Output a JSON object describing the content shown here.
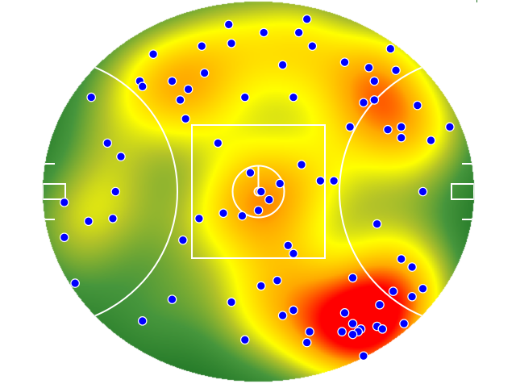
{
  "chart_data": {
    "type": "heatmap",
    "title": "",
    "xlabel": "",
    "ylabel": "",
    "xlim": [
      -80,
      80
    ],
    "ylim": [
      -70.5,
      70.5
    ],
    "grid": false,
    "legend": "none",
    "colors": {
      "low": "#1e7a28",
      "mid": "#ffff00",
      "high": "#ff0000",
      "points": "#0000ff",
      "point_outline": "#ffffff",
      "field_lines": "#ffffff"
    },
    "points": [
      [
        -11,
        62
      ],
      [
        18,
        64
      ],
      [
        2,
        59
      ],
      [
        15,
        59
      ],
      [
        -21,
        54
      ],
      [
        -10,
        55
      ],
      [
        20,
        54
      ],
      [
        -39,
        51
      ],
      [
        49,
        53
      ],
      [
        9,
        47
      ],
      [
        32,
        48
      ],
      [
        41,
        46
      ],
      [
        51,
        45
      ],
      [
        -20,
        44
      ],
      [
        -44,
        41
      ],
      [
        -43,
        39
      ],
      [
        -32,
        41
      ],
      [
        -26,
        38
      ],
      [
        43,
        41
      ],
      [
        -62,
        35
      ],
      [
        -29,
        34
      ],
      [
        -5,
        35
      ],
      [
        13,
        35
      ],
      [
        39,
        33
      ],
      [
        43,
        34
      ],
      [
        59,
        32
      ],
      [
        -27,
        27
      ],
      [
        34,
        24
      ],
      [
        48,
        23
      ],
      [
        53,
        24
      ],
      [
        71,
        24
      ],
      [
        53,
        20
      ],
      [
        64,
        19
      ],
      [
        -15,
        18
      ],
      [
        -56,
        18
      ],
      [
        -51,
        13
      ],
      [
        16,
        10
      ],
      [
        -3,
        7
      ],
      [
        8,
        3
      ],
      [
        23,
        4
      ],
      [
        28,
        4
      ],
      [
        1,
        0
      ],
      [
        4,
        -3
      ],
      [
        -53,
        0
      ],
      [
        61,
        0
      ],
      [
        -72,
        -4
      ],
      [
        -13,
        -8
      ],
      [
        -6,
        -9
      ],
      [
        0,
        -7
      ],
      [
        -22,
        -10
      ],
      [
        -54,
        -10
      ],
      [
        -63,
        -11
      ],
      [
        44,
        -12
      ],
      [
        -72,
        -17
      ],
      [
        -28,
        -18
      ],
      [
        11,
        -20
      ],
      [
        13,
        -23
      ],
      [
        53,
        -25
      ],
      [
        57,
        -28
      ],
      [
        35,
        -32
      ],
      [
        7,
        -33
      ],
      [
        1,
        -35
      ],
      [
        -68,
        -34
      ],
      [
        50,
        -37
      ],
      [
        61,
        -36
      ],
      [
        57,
        -39
      ],
      [
        -32,
        -40
      ],
      [
        -10,
        -41
      ],
      [
        45,
        -42
      ],
      [
        13,
        -44
      ],
      [
        9,
        -46
      ],
      [
        32,
        -45
      ],
      [
        -43,
        -48
      ],
      [
        35,
        -49
      ],
      [
        54,
        -49
      ],
      [
        44,
        -50
      ],
      [
        46,
        -51
      ],
      [
        38,
        -51
      ],
      [
        37,
        -52
      ],
      [
        31,
        -52
      ],
      [
        35,
        -53
      ],
      [
        19,
        -52
      ],
      [
        -5,
        -55
      ],
      [
        18,
        -56
      ],
      [
        39,
        -61
      ]
    ]
  }
}
